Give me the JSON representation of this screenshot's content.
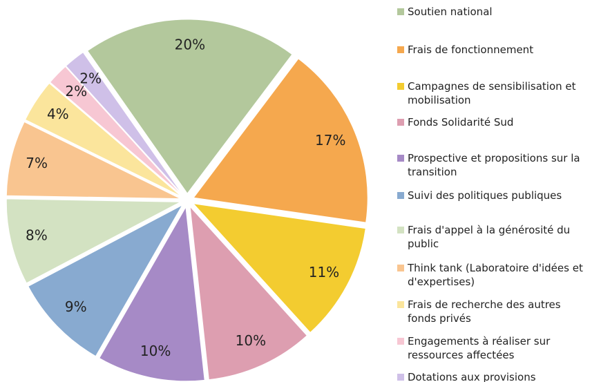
{
  "chart_data": {
    "type": "pie",
    "categories": [
      "Soutien national",
      "Frais de fonctionnement",
      "Campagnes de sensibilisation et mobilisation",
      "Fonds Solidarité Sud",
      "Prospective et propositions sur la transition",
      "Suivi des politiques publiques",
      "Frais d'appel à la générosité du public",
      "Think tank (Laboratoire d'idées et d'expertises)",
      "Frais de recherche des autres fonds privés",
      "Engagements à réaliser sur ressources affectées",
      "Dotations aux provisions"
    ],
    "values": [
      20,
      17,
      11,
      10,
      10,
      9,
      8,
      7,
      4,
      2,
      2
    ],
    "value_labels": [
      "20%",
      "17%",
      "11%",
      "10%",
      "10%",
      "9%",
      "8%",
      "7%",
      "4%",
      "2%",
      "2%"
    ],
    "colors": [
      "#b3c89c",
      "#f5a84e",
      "#f3cc30",
      "#dd9eb0",
      "#a68ac6",
      "#88aad0",
      "#d3e2c2",
      "#f9c590",
      "#fbe59c",
      "#f7c7d3",
      "#cfc0e8"
    ]
  }
}
